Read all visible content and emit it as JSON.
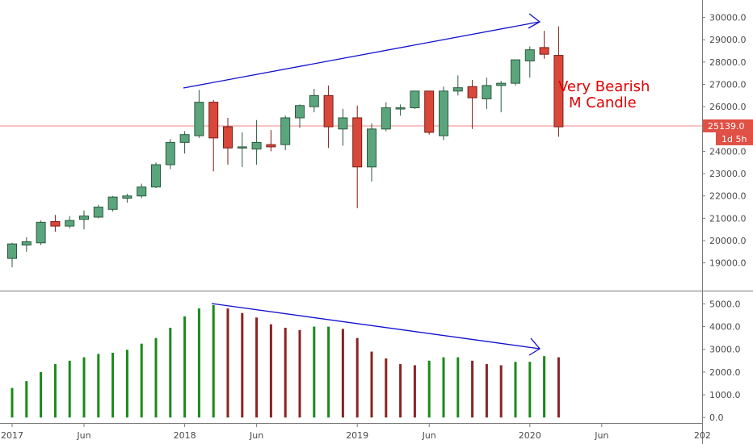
{
  "colors": {
    "up_fill": "#5ba57c",
    "up_border": "#2b5a3e",
    "down_fill": "#d9473a",
    "down_border": "#7a1d14",
    "vol_up": "#1a8a1a",
    "vol_down": "#8b2323",
    "arrow": "#1010cc",
    "price_line": "#f08a8a",
    "annotation": "#e00000",
    "badge": "#e05045"
  },
  "chart_data": [
    {
      "type": "candlestick",
      "timeframe": "monthly",
      "y_ticks": [
        "19000.0",
        "20000.0",
        "21000.0",
        "22000.0",
        "23000.0",
        "24000.0",
        "25000.0",
        "26000.0",
        "27000.0",
        "28000.0",
        "29000.0",
        "30000.0"
      ],
      "ylim": [
        18300,
        30600
      ],
      "x_ticks": [
        "2017",
        "Jun",
        "2018",
        "Jun",
        "2019",
        "Jun",
        "2020",
        "Jun",
        "202"
      ],
      "current_price": "25139.0",
      "countdown": "1d 5h",
      "candles": [
        {
          "date": "2017-01",
          "open": 19200,
          "high": 19900,
          "low": 18800,
          "close": 19850
        },
        {
          "date": "2017-02",
          "open": 19800,
          "high": 20150,
          "low": 19500,
          "close": 19950
        },
        {
          "date": "2017-03",
          "open": 19900,
          "high": 20900,
          "low": 19800,
          "close": 20820
        },
        {
          "date": "2017-04",
          "open": 20850,
          "high": 21150,
          "low": 20400,
          "close": 20650
        },
        {
          "date": "2017-05",
          "open": 20650,
          "high": 21100,
          "low": 20550,
          "close": 20900
        },
        {
          "date": "2017-06",
          "open": 20950,
          "high": 21350,
          "low": 20500,
          "close": 21100
        },
        {
          "date": "2017-07",
          "open": 21050,
          "high": 21600,
          "low": 21000,
          "close": 21500
        },
        {
          "date": "2017-08",
          "open": 21400,
          "high": 22000,
          "low": 21300,
          "close": 21950
        },
        {
          "date": "2017-09",
          "open": 21900,
          "high": 22100,
          "low": 21700,
          "close": 22000
        },
        {
          "date": "2017-10",
          "open": 22000,
          "high": 22550,
          "low": 21900,
          "close": 22400
        },
        {
          "date": "2017-11",
          "open": 22400,
          "high": 23500,
          "low": 22350,
          "close": 23400
        },
        {
          "date": "2017-12",
          "open": 23400,
          "high": 24550,
          "low": 23200,
          "close": 24400
        },
        {
          "date": "2018-01",
          "open": 24400,
          "high": 24900,
          "low": 23900,
          "close": 24750
        },
        {
          "date": "2018-02",
          "open": 24700,
          "high": 26750,
          "low": 24600,
          "close": 26200
        },
        {
          "date": "2018-03",
          "open": 26200,
          "high": 26300,
          "low": 23100,
          "close": 24600
        },
        {
          "date": "2018-04",
          "open": 25100,
          "high": 25500,
          "low": 23400,
          "close": 24150
        },
        {
          "date": "2018-05",
          "open": 24150,
          "high": 24850,
          "low": 23300,
          "close": 24200
        },
        {
          "date": "2018-06",
          "open": 24100,
          "high": 25400,
          "low": 23400,
          "close": 24400
        },
        {
          "date": "2018-07",
          "open": 24300,
          "high": 24950,
          "low": 24000,
          "close": 24200
        },
        {
          "date": "2018-08",
          "open": 24300,
          "high": 25600,
          "low": 24050,
          "close": 25500
        },
        {
          "date": "2018-09",
          "open": 25500,
          "high": 26100,
          "low": 25050,
          "close": 26050
        },
        {
          "date": "2018-10",
          "open": 26000,
          "high": 26800,
          "low": 25750,
          "close": 26500
        },
        {
          "date": "2018-11",
          "open": 26500,
          "high": 26950,
          "low": 24150,
          "close": 25100
        },
        {
          "date": "2018-12",
          "open": 25000,
          "high": 25900,
          "low": 24250,
          "close": 25500
        },
        {
          "date": "2019-01",
          "open": 25500,
          "high": 26050,
          "low": 21450,
          "close": 23300
        },
        {
          "date": "2019-02",
          "open": 23300,
          "high": 25250,
          "low": 22650,
          "close": 25000
        },
        {
          "date": "2019-03",
          "open": 25000,
          "high": 26200,
          "low": 24900,
          "close": 25950
        },
        {
          "date": "2019-04",
          "open": 25900,
          "high": 26100,
          "low": 25600,
          "close": 25950
        },
        {
          "date": "2019-05",
          "open": 25950,
          "high": 26700,
          "low": 25900,
          "close": 26700
        },
        {
          "date": "2019-06",
          "open": 26700,
          "high": 26700,
          "low": 24750,
          "close": 24850
        },
        {
          "date": "2019-07",
          "open": 24700,
          "high": 26900,
          "low": 24500,
          "close": 26700
        },
        {
          "date": "2019-08",
          "open": 26700,
          "high": 27400,
          "low": 26500,
          "close": 26850
        },
        {
          "date": "2019-09",
          "open": 26900,
          "high": 27200,
          "low": 25000,
          "close": 26400
        },
        {
          "date": "2019-10",
          "open": 26350,
          "high": 27300,
          "low": 25900,
          "close": 26950
        },
        {
          "date": "2019-11",
          "open": 26950,
          "high": 27150,
          "low": 25750,
          "close": 27050
        },
        {
          "date": "2019-12",
          "open": 27050,
          "high": 28100,
          "low": 26950,
          "close": 28100
        },
        {
          "date": "2020-01",
          "open": 28050,
          "high": 28700,
          "low": 27300,
          "close": 28550
        },
        {
          "date": "2020-02",
          "open": 28650,
          "high": 29400,
          "low": 28150,
          "close": 28350
        },
        {
          "date": "2020-03",
          "open": 28300,
          "high": 29600,
          "low": 24650,
          "close": 25100
        }
      ]
    },
    {
      "type": "bar",
      "role": "volume",
      "y_ticks": [
        "0.0",
        "1000.0",
        "2000.0",
        "3000.0",
        "4000.0",
        "5000.0"
      ],
      "ylim": [
        -100,
        5300
      ],
      "values": [
        1300,
        1600,
        2000,
        2350,
        2500,
        2650,
        2800,
        2850,
        2980,
        3250,
        3500,
        3950,
        4450,
        4800,
        4950,
        4800,
        4600,
        4400,
        4100,
        3950,
        3850,
        4000,
        4000,
        3900,
        3500,
        2900,
        2600,
        2350,
        2300,
        2500,
        2650,
        2650,
        2500,
        2350,
        2300,
        2450,
        2450,
        2700,
        2650
      ],
      "directions": [
        "up",
        "up",
        "up",
        "up",
        "up",
        "up",
        "up",
        "up",
        "up",
        "up",
        "up",
        "up",
        "up",
        "up",
        "up",
        "down",
        "down",
        "down",
        "down",
        "down",
        "down",
        "up",
        "up",
        "down",
        "down",
        "down",
        "down",
        "down",
        "down",
        "up",
        "up",
        "up",
        "down",
        "down",
        "down",
        "up",
        "up",
        "up",
        "down"
      ]
    }
  ],
  "annotation": {
    "line1": "Very Bearish",
    "line2": "M Candle"
  }
}
